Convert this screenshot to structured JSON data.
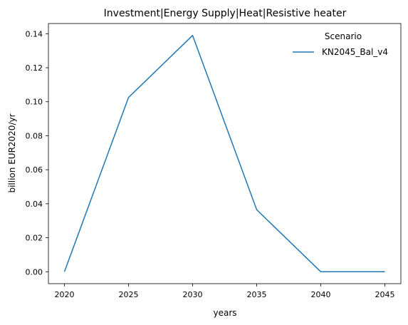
{
  "chart_data": {
    "type": "line",
    "title": "Investment|Energy Supply|Heat|Resistive heater",
    "xlabel": "years",
    "ylabel": "billion EUR2020/yr",
    "x": [
      2020,
      2025,
      2030,
      2035,
      2040,
      2045
    ],
    "xticks": [
      "2020",
      "2025",
      "2030",
      "2035",
      "2040",
      "2045"
    ],
    "yticks": [
      "0.00",
      "0.02",
      "0.04",
      "0.06",
      "0.08",
      "0.10",
      "0.12",
      "0.14"
    ],
    "ylim": [
      -0.007,
      0.146
    ],
    "xlim": [
      2018.75,
      2046.25
    ],
    "grid": false,
    "legend": {
      "title": "Scenario",
      "placement": "top-right"
    },
    "series": [
      {
        "name": "KN2045_Bal_v4",
        "color": "#1f77b4",
        "values": [
          0.0,
          0.1025,
          0.139,
          0.0365,
          0.0,
          0.0
        ]
      }
    ]
  }
}
